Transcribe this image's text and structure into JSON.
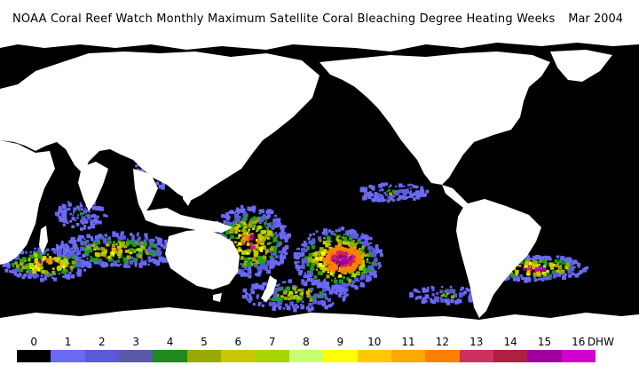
{
  "title": {
    "main": "NOAA Coral Reef Watch Monthly Maximum Satellite Coral Bleaching Degree Heating Weeks",
    "date": "Mar 2004"
  },
  "map": {
    "ocean_color": "#000000",
    "land_color": "#ffffff",
    "data_colors": [
      "#6a6af5",
      "#5a5ae0",
      "#1e9e1e",
      "#9aaa00",
      "#c8c800",
      "#a8e000",
      "#ffff00",
      "#ffb000",
      "#ff8000",
      "#d02060",
      "#9000a0",
      "#c000c0"
    ]
  },
  "legend": {
    "unit": "DHW",
    "ticks": [
      "0",
      "1",
      "2",
      "3",
      "4",
      "5",
      "6",
      "7",
      "8",
      "9",
      "10",
      "11",
      "12",
      "13",
      "14",
      "15",
      "16"
    ],
    "colors": [
      "#000000",
      "#6a6af5",
      "#5a5ad8",
      "#5a5aa8",
      "#1e8a1e",
      "#9aaa00",
      "#c8c800",
      "#a8d400",
      "#c8ff70",
      "#ffff00",
      "#ffc800",
      "#ffa800",
      "#ff8000",
      "#d03060",
      "#b02040",
      "#a000a0",
      "#d000d0"
    ]
  }
}
